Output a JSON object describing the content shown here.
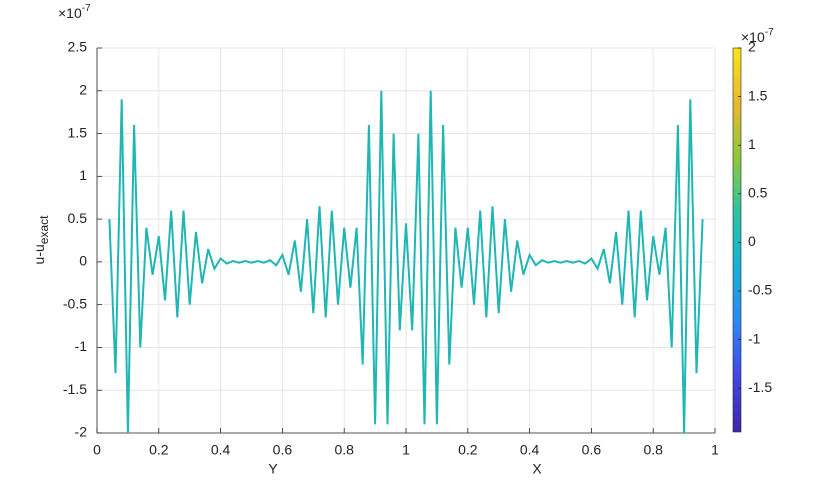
{
  "chart_data": {
    "type": "line",
    "ylabel": {
      "text": "u-u",
      "subscript": "exact"
    },
    "xlabels": [
      "Y",
      "X"
    ],
    "y_exponent": {
      "base": "×10",
      "power": "-7"
    },
    "color": "#1fb6b4",
    "grid": true,
    "xlim": [
      0,
      2
    ],
    "ylim": [
      -2,
      2.5
    ],
    "xticks": [
      0,
      0.2,
      0.4,
      0.6,
      0.8,
      1,
      {
        "value": 1.2,
        "label": "0.2"
      },
      {
        "value": 1.4,
        "label": "0.4"
      },
      {
        "value": 1.6,
        "label": "0.6"
      },
      {
        "value": 1.8,
        "label": "0.8"
      },
      {
        "value": 2,
        "label": "1"
      }
    ],
    "yticks": [
      -2,
      -1.5,
      -1,
      -0.5,
      0,
      0.5,
      1,
      1.5,
      2,
      2.5
    ],
    "x": [
      0.04,
      0.06,
      0.08,
      0.1,
      0.12,
      0.14,
      0.16,
      0.18,
      0.2,
      0.22,
      0.24,
      0.26,
      0.28,
      0.3,
      0.32,
      0.34,
      0.36,
      0.38,
      0.4,
      0.42,
      0.44,
      0.46,
      0.48,
      0.5,
      0.52,
      0.54,
      0.56,
      0.58,
      0.6,
      0.62,
      0.64,
      0.66,
      0.68,
      0.7,
      0.72,
      0.74,
      0.76,
      0.78,
      0.8,
      0.82,
      0.84,
      0.86,
      0.88,
      0.9,
      0.92,
      0.94,
      0.96,
      0.98,
      1.0,
      1.02,
      1.04,
      1.06,
      1.08,
      1.1,
      1.12,
      1.14,
      1.16,
      1.18,
      1.2,
      1.22,
      1.24,
      1.26,
      1.28,
      1.3,
      1.32,
      1.34,
      1.36,
      1.38,
      1.4,
      1.42,
      1.44,
      1.46,
      1.48,
      1.5,
      1.52,
      1.54,
      1.56,
      1.58,
      1.6,
      1.62,
      1.64,
      1.66,
      1.68,
      1.7,
      1.72,
      1.74,
      1.76,
      1.78,
      1.8,
      1.82,
      1.84,
      1.86,
      1.88,
      1.9,
      1.92,
      1.94,
      1.96
    ],
    "values": [
      0.5,
      -1.3,
      1.9,
      -2.0,
      1.6,
      -1.0,
      0.4,
      -0.15,
      0.3,
      -0.45,
      0.6,
      -0.65,
      0.6,
      -0.5,
      0.35,
      -0.25,
      0.15,
      -0.08,
      0.04,
      -0.02,
      0.01,
      -0.01,
      0.01,
      -0.01,
      0.01,
      -0.01,
      0.02,
      -0.04,
      0.08,
      -0.15,
      0.25,
      -0.35,
      0.5,
      -0.6,
      0.65,
      -0.65,
      0.6,
      -0.5,
      0.4,
      -0.3,
      0.4,
      -1.2,
      1.6,
      -1.9,
      2.0,
      -1.9,
      1.5,
      -0.8,
      0.45,
      -0.8,
      1.5,
      -1.9,
      2.0,
      -1.9,
      1.6,
      -1.2,
      0.4,
      -0.3,
      0.4,
      -0.5,
      0.6,
      -0.65,
      0.65,
      -0.6,
      0.5,
      -0.35,
      0.25,
      -0.15,
      0.08,
      -0.04,
      0.02,
      -0.01,
      0.01,
      -0.01,
      0.01,
      -0.01,
      0.01,
      -0.02,
      0.04,
      -0.08,
      0.15,
      -0.25,
      0.35,
      -0.5,
      0.6,
      -0.65,
      0.6,
      -0.45,
      0.3,
      -0.15,
      0.4,
      -1.0,
      1.6,
      -2.0,
      1.9,
      -1.3,
      0.5
    ],
    "colorbar": {
      "exponent": {
        "base": "×10",
        "power": "-7"
      },
      "clim": [
        -1.95,
        2
      ],
      "ticks": [
        -1.5,
        -1,
        -0.5,
        0,
        0.5,
        1,
        1.5,
        2
      ],
      "colormap": [
        "#3e26a8",
        "#4443e6",
        "#2e87f7",
        "#16b2d6",
        "#2bc4a3",
        "#8ec83b",
        "#e8ba30",
        "#f9e417"
      ]
    }
  }
}
